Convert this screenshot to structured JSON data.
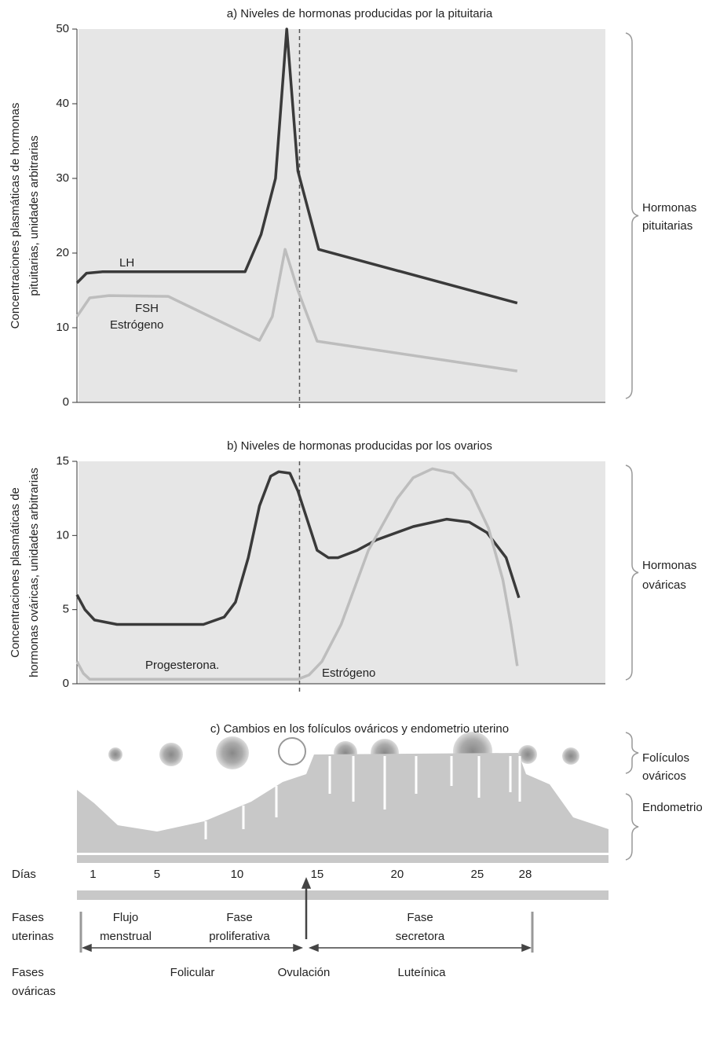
{
  "chart_data": [
    {
      "type": "line",
      "title": "a) Niveles de hormonas producidas por la pituitaria",
      "ylabel": [
        "Concentraciones plasmáticas de hormonas",
        "pituitarias, unidades arbitrarias"
      ],
      "side_label": [
        "Hormonas",
        "pituitarias"
      ],
      "xlim": [
        0,
        33
      ],
      "ylim": [
        0,
        50
      ],
      "yticks": [
        0,
        10,
        20,
        30,
        40,
        50
      ],
      "grid": false,
      "vline": 13.9,
      "series": [
        {
          "name": "LH",
          "color": "#3a3a3a",
          "x": [
            0,
            0.6,
            1.6,
            10.5,
            11.5,
            12.4,
            13.1,
            13.8,
            15.1,
            27.5
          ],
          "values": [
            16,
            17.3,
            17.5,
            17.5,
            22.5,
            30,
            50,
            31,
            20.5,
            13.3
          ]
        },
        {
          "name": "FSH",
          "color": "#bdbdbd",
          "x": [
            0,
            0.8,
            2,
            5.7,
            11.4,
            12.2,
            13,
            13.8,
            15,
            27.5
          ],
          "values": [
            11.5,
            14,
            14.3,
            14.2,
            8.3,
            11.5,
            20.5,
            15,
            8.2,
            4.2
          ]
        }
      ]
    },
    {
      "type": "line",
      "title": "b) Niveles de hormonas producidas por los ovarios",
      "ylabel": [
        "Concentraciones plasmáticas de",
        "hormonas ováricas, unidades arbitrarias"
      ],
      "side_label": [
        "Hormonas",
        "ováricas"
      ],
      "xlim": [
        0,
        33
      ],
      "ylim": [
        0,
        15
      ],
      "yticks": [
        0,
        5,
        10,
        15
      ],
      "grid": false,
      "vline": 13.9,
      "annotations": [
        "Estrógeno"
      ],
      "series": [
        {
          "name": "Estrógeno",
          "color": "#3a3a3a",
          "x": [
            0,
            0.5,
            1.1,
            2.5,
            7.9,
            9.2,
            9.9,
            10.7,
            11.4,
            12.1,
            12.6,
            13.3,
            13.8,
            14.4,
            15,
            15.7,
            16.3,
            17.5,
            18.7,
            21,
            23.1,
            24.5,
            25.6,
            26.8,
            27.6
          ],
          "values": [
            6,
            5,
            4.3,
            4.0,
            4.0,
            4.5,
            5.5,
            8.5,
            12,
            14,
            14.3,
            14.2,
            13,
            11,
            9,
            8.5,
            8.5,
            9,
            9.7,
            10.6,
            11.1,
            10.9,
            10.2,
            8.5,
            5.8
          ]
        },
        {
          "name": "Progesterona.",
          "color": "#bdbdbd",
          "x": [
            0,
            0.4,
            0.8,
            2,
            13.8,
            14.5,
            15.3,
            16.5,
            18.2,
            20,
            21,
            22.2,
            23.5,
            24.6,
            25.7,
            26.6,
            27.1,
            27.5
          ],
          "values": [
            1.5,
            0.7,
            0.3,
            0.3,
            0.3,
            0.6,
            1.5,
            4,
            9,
            12.5,
            13.9,
            14.5,
            14.2,
            13,
            10.5,
            7,
            4,
            1.2
          ]
        }
      ]
    }
  ],
  "panel_c": {
    "title": "c) Cambios en los folículos ováricos y endometrio uterino",
    "follicles_label": [
      "Folículos",
      "ováricos"
    ],
    "endometrium_label": "Endometrio"
  },
  "days": {
    "label": "Días",
    "xlim": [
      0,
      33
    ],
    "ticks": [
      1,
      5,
      10,
      15,
      20,
      25,
      28
    ]
  },
  "uterine_phases": {
    "label": [
      "Fases",
      "uterinas"
    ],
    "phases": [
      [
        "Flujo",
        "menstrual"
      ],
      [
        "Fase",
        "proliferativa"
      ],
      [
        "Fase",
        "secretora"
      ]
    ]
  },
  "ovarian_phases": {
    "label": [
      "Fases",
      "ováricas"
    ],
    "phases": [
      "Folicular",
      "Ovulación",
      "Luteínica"
    ]
  }
}
